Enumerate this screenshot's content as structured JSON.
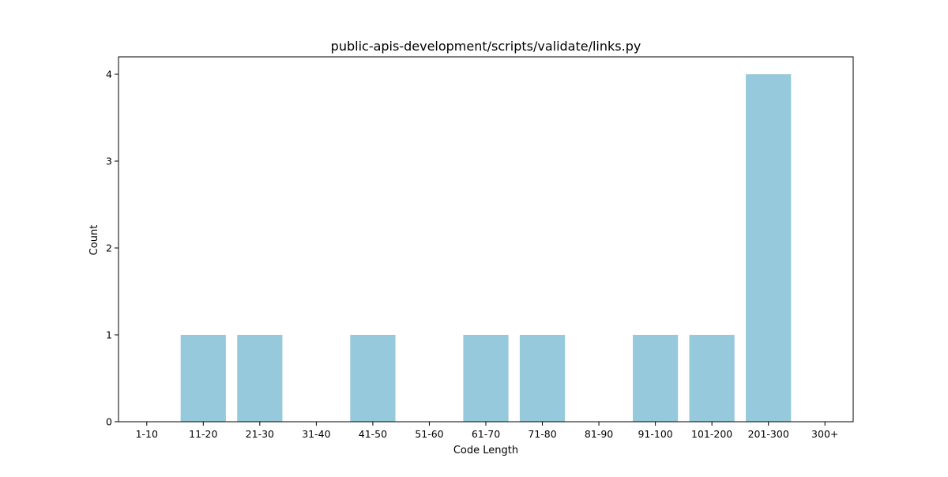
{
  "chart_data": {
    "type": "bar",
    "title": "public-apis-development/scripts/validate/links.py",
    "xlabel": "Code Length",
    "ylabel": "Count",
    "categories": [
      "1-10",
      "11-20",
      "21-30",
      "31-40",
      "41-50",
      "51-60",
      "61-70",
      "71-80",
      "81-90",
      "91-100",
      "101-200",
      "201-300",
      "300+"
    ],
    "values": [
      0,
      1,
      1,
      0,
      1,
      0,
      1,
      1,
      0,
      1,
      1,
      4,
      0
    ],
    "ylim": [
      0,
      4.2
    ],
    "yticks": [
      0,
      1,
      2,
      3,
      4
    ],
    "grid": false,
    "bar_color": "#96c9dc",
    "axes_color": "#000000"
  }
}
